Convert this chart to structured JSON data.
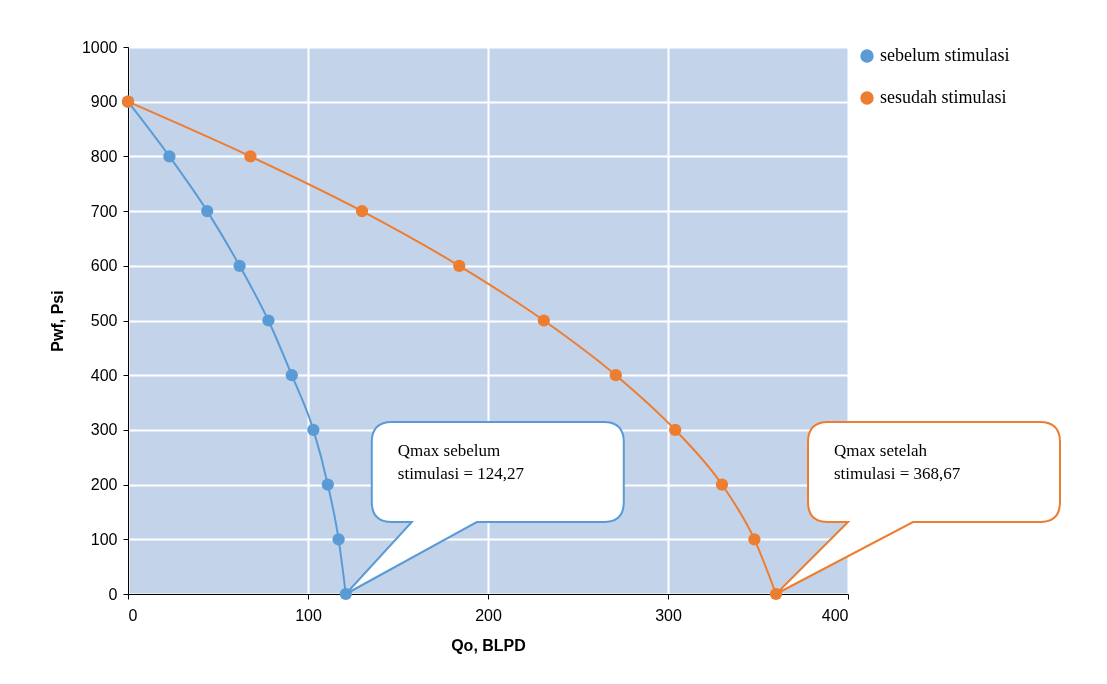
{
  "chart_data": {
    "type": "line",
    "xlabel": "Qo, BLPD",
    "ylabel": "Pwf, Psi",
    "xlim": [
      0,
      400
    ],
    "xticks": [
      0,
      100,
      200,
      300,
      400
    ],
    "ylim": [
      0,
      1000
    ],
    "yticks": [
      0,
      100,
      200,
      300,
      400,
      500,
      600,
      700,
      800,
      900,
      1000
    ],
    "grid": true,
    "legend": "right",
    "marker": "circle",
    "series": [
      {
        "name": "sebelum stimulasi",
        "color": "#5b9bd5",
        "x": [
          0,
          23,
          44,
          62,
          78,
          91,
          103,
          111,
          117,
          121
        ],
        "values": [
          900,
          800,
          700,
          600,
          500,
          400,
          300,
          200,
          100,
          0
        ]
      },
      {
        "name": "sesudah stimulasi",
        "color": "#ed7d31",
        "x": [
          0,
          68,
          130,
          184,
          231,
          271,
          304,
          330,
          348,
          360
        ],
        "values": [
          900,
          800,
          700,
          600,
          500,
          400,
          300,
          200,
          100,
          0
        ]
      }
    ],
    "annotations": [
      "Qmax sebelum stimulasi = 124,27",
      "Qmax setelah stimulasi = 368,67"
    ]
  }
}
